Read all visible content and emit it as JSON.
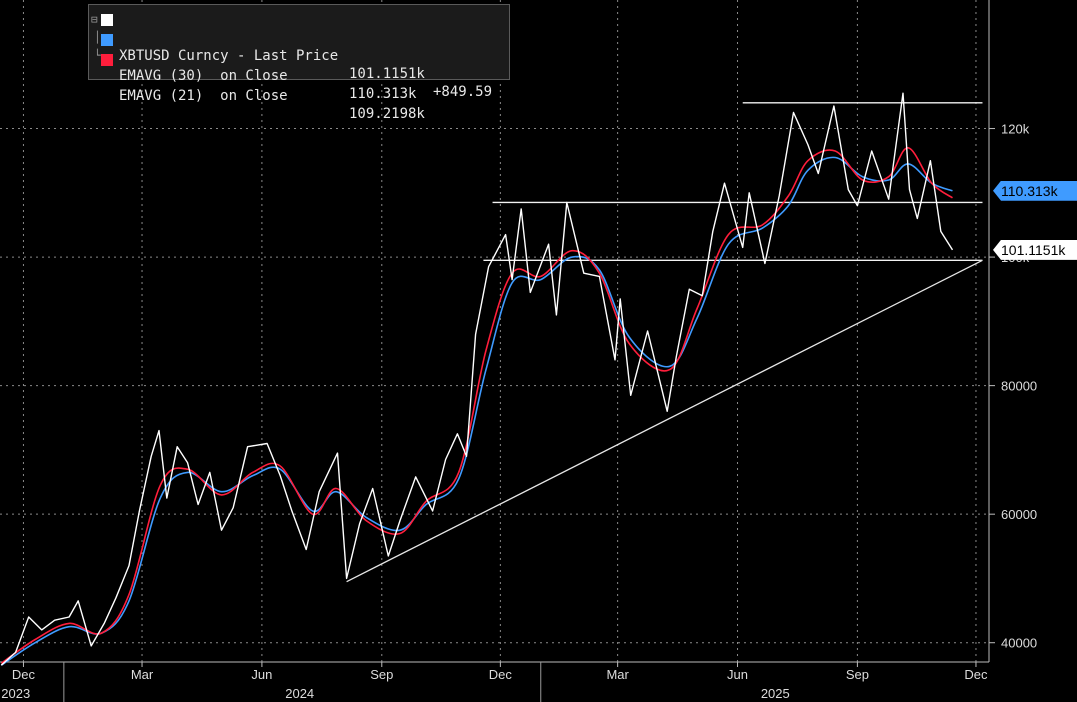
{
  "legend": {
    "items": [
      {
        "name": "XBTUSD Curncy - Last Price",
        "value": "101.1151k",
        "change": "+849.59",
        "color": "#ffffff"
      },
      {
        "name": "EMAVG (30)  on Close",
        "value": "110.313k",
        "change": "",
        "color": "#3f9bff"
      },
      {
        "name": "EMAVG (21)  on Close",
        "value": "109.2198k",
        "change": "",
        "color": "#ff1e3c"
      }
    ]
  },
  "price_tags": {
    "ema30": {
      "label": "110.313k",
      "value": 110313,
      "bg": "#3f9bff",
      "fg": "#000000"
    },
    "last": {
      "label": "101.1151k",
      "value": 101115,
      "bg": "#ffffff",
      "fg": "#000000"
    }
  },
  "chart_data": {
    "type": "line",
    "title": "",
    "xlabel": "",
    "ylabel": "",
    "ylim": [
      37000,
      140000
    ],
    "xlim": [
      "2023-11-13",
      "2025-12-11"
    ],
    "grid": true,
    "legend_position": "top-left",
    "y_ticks": [
      {
        "value": 40000,
        "label": "40000"
      },
      {
        "value": 60000,
        "label": "60000"
      },
      {
        "value": 80000,
        "label": "80000"
      },
      {
        "value": 100000,
        "label": "100k"
      },
      {
        "value": 120000,
        "label": "120k"
      }
    ],
    "x_ticks": [
      {
        "date": "2023-12-01",
        "label": "Dec"
      },
      {
        "date": "2024-03-01",
        "label": "Mar"
      },
      {
        "date": "2024-06-01",
        "label": "Jun"
      },
      {
        "date": "2024-09-01",
        "label": "Sep"
      },
      {
        "date": "2024-12-01",
        "label": "Dec"
      },
      {
        "date": "2025-03-01",
        "label": "Mar"
      },
      {
        "date": "2025-06-01",
        "label": "Jun"
      },
      {
        "date": "2025-09-01",
        "label": "Sep"
      },
      {
        "date": "2025-12-01",
        "label": "Dec"
      }
    ],
    "year_labels": [
      {
        "date": "2023-11-14",
        "label": "2023"
      },
      {
        "date": "2024-06-30",
        "label": "2024"
      },
      {
        "date": "2025-06-30",
        "label": "2025"
      }
    ],
    "year_dividers": [
      "2024-01-01",
      "2025-01-01"
    ],
    "series": [
      {
        "name": "XBTUSD Curncy - Last Price",
        "color": "#ffffff",
        "points": [
          [
            "2023-11-14",
            36500
          ],
          [
            "2023-11-25",
            38500
          ],
          [
            "2023-12-05",
            44000
          ],
          [
            "2023-12-15",
            42000
          ],
          [
            "2023-12-25",
            43500
          ],
          [
            "2024-01-05",
            44000
          ],
          [
            "2024-01-12",
            46500
          ],
          [
            "2024-01-22",
            39500
          ],
          [
            "2024-02-01",
            43000
          ],
          [
            "2024-02-10",
            47000
          ],
          [
            "2024-02-20",
            52000
          ],
          [
            "2024-02-28",
            60500
          ],
          [
            "2024-03-08",
            69000
          ],
          [
            "2024-03-14",
            73000
          ],
          [
            "2024-03-20",
            62500
          ],
          [
            "2024-03-28",
            70500
          ],
          [
            "2024-04-05",
            68000
          ],
          [
            "2024-04-13",
            61500
          ],
          [
            "2024-04-22",
            66500
          ],
          [
            "2024-05-01",
            57500
          ],
          [
            "2024-05-10",
            61000
          ],
          [
            "2024-05-21",
            70500
          ],
          [
            "2024-06-05",
            71000
          ],
          [
            "2024-06-15",
            66000
          ],
          [
            "2024-06-24",
            60500
          ],
          [
            "2024-07-05",
            54500
          ],
          [
            "2024-07-15",
            63500
          ],
          [
            "2024-07-29",
            69500
          ],
          [
            "2024-08-05",
            50000
          ],
          [
            "2024-08-15",
            58500
          ],
          [
            "2024-08-25",
            64000
          ],
          [
            "2024-09-06",
            53500
          ],
          [
            "2024-09-15",
            59000
          ],
          [
            "2024-09-27",
            65800
          ],
          [
            "2024-10-10",
            60500
          ],
          [
            "2024-10-20",
            68500
          ],
          [
            "2024-10-29",
            72500
          ],
          [
            "2024-11-05",
            69000
          ],
          [
            "2024-11-12",
            88000
          ],
          [
            "2024-11-22",
            98500
          ],
          [
            "2024-12-05",
            103500
          ],
          [
            "2024-12-10",
            96500
          ],
          [
            "2024-12-17",
            107500
          ],
          [
            "2024-12-24",
            94500
          ],
          [
            "2025-01-07",
            102000
          ],
          [
            "2025-01-13",
            91000
          ],
          [
            "2025-01-21",
            108500
          ],
          [
            "2025-02-03",
            97500
          ],
          [
            "2025-02-15",
            97000
          ],
          [
            "2025-02-27",
            84000
          ],
          [
            "2025-03-03",
            93500
          ],
          [
            "2025-03-11",
            78500
          ],
          [
            "2025-03-24",
            88500
          ],
          [
            "2025-04-08",
            76000
          ],
          [
            "2025-04-15",
            84500
          ],
          [
            "2025-04-25",
            95000
          ],
          [
            "2025-05-05",
            94000
          ],
          [
            "2025-05-13",
            104000
          ],
          [
            "2025-05-22",
            111500
          ],
          [
            "2025-06-05",
            101500
          ],
          [
            "2025-06-10",
            110000
          ],
          [
            "2025-06-22",
            99000
          ],
          [
            "2025-07-03",
            109500
          ],
          [
            "2025-07-14",
            122500
          ],
          [
            "2025-07-25",
            117500
          ],
          [
            "2025-08-02",
            113000
          ],
          [
            "2025-08-14",
            123500
          ],
          [
            "2025-08-25",
            110500
          ],
          [
            "2025-09-01",
            108000
          ],
          [
            "2025-09-12",
            116500
          ],
          [
            "2025-09-25",
            109000
          ],
          [
            "2025-10-06",
            125500
          ],
          [
            "2025-10-11",
            110500
          ],
          [
            "2025-10-17",
            106000
          ],
          [
            "2025-10-27",
            115000
          ],
          [
            "2025-11-04",
            104000
          ],
          [
            "2025-11-13",
            101115
          ]
        ]
      },
      {
        "name": "EMAVG (30) on Close",
        "color": "#3f9bff",
        "points": [
          [
            "2023-11-14",
            36500
          ],
          [
            "2023-12-10",
            40000
          ],
          [
            "2024-01-05",
            42500
          ],
          [
            "2024-01-30",
            41500
          ],
          [
            "2024-02-20",
            46500
          ],
          [
            "2024-03-15",
            62500
          ],
          [
            "2024-04-05",
            66500
          ],
          [
            "2024-05-01",
            63500
          ],
          [
            "2024-05-25",
            66000
          ],
          [
            "2024-06-15",
            67000
          ],
          [
            "2024-07-10",
            60500
          ],
          [
            "2024-07-28",
            63500
          ],
          [
            "2024-08-20",
            59500
          ],
          [
            "2024-09-15",
            57500
          ],
          [
            "2024-10-05",
            61500
          ],
          [
            "2024-10-30",
            65500
          ],
          [
            "2024-11-20",
            82500
          ],
          [
            "2024-12-10",
            96000
          ],
          [
            "2025-01-01",
            96500
          ],
          [
            "2025-01-25",
            100000
          ],
          [
            "2025-02-15",
            98000
          ],
          [
            "2025-03-10",
            87500
          ],
          [
            "2025-04-10",
            83000
          ],
          [
            "2025-05-01",
            90500
          ],
          [
            "2025-05-25",
            102000
          ],
          [
            "2025-06-20",
            104500
          ],
          [
            "2025-07-10",
            108000
          ],
          [
            "2025-07-25",
            113500
          ],
          [
            "2025-08-15",
            115500
          ],
          [
            "2025-09-05",
            112500
          ],
          [
            "2025-09-25",
            112000
          ],
          [
            "2025-10-10",
            114500
          ],
          [
            "2025-10-28",
            111500
          ],
          [
            "2025-11-13",
            110313
          ]
        ]
      },
      {
        "name": "EMAVG (21) on Close",
        "color": "#ff1e3c",
        "points": [
          [
            "2023-11-14",
            36800
          ],
          [
            "2023-12-10",
            40500
          ],
          [
            "2024-01-05",
            43000
          ],
          [
            "2024-01-30",
            41500
          ],
          [
            "2024-02-20",
            47500
          ],
          [
            "2024-03-15",
            64500
          ],
          [
            "2024-04-05",
            67000
          ],
          [
            "2024-05-01",
            63000
          ],
          [
            "2024-05-25",
            66500
          ],
          [
            "2024-06-15",
            67500
          ],
          [
            "2024-07-10",
            60000
          ],
          [
            "2024-07-28",
            64000
          ],
          [
            "2024-08-20",
            59000
          ],
          [
            "2024-09-15",
            57000
          ],
          [
            "2024-10-05",
            62000
          ],
          [
            "2024-10-30",
            66500
          ],
          [
            "2024-11-20",
            85500
          ],
          [
            "2024-12-10",
            97500
          ],
          [
            "2025-01-01",
            97000
          ],
          [
            "2025-01-25",
            101000
          ],
          [
            "2025-02-15",
            97500
          ],
          [
            "2025-03-10",
            86500
          ],
          [
            "2025-04-10",
            82500
          ],
          [
            "2025-05-01",
            92000
          ],
          [
            "2025-05-25",
            103500
          ],
          [
            "2025-06-20",
            105000
          ],
          [
            "2025-07-10",
            109500
          ],
          [
            "2025-07-25",
            115000
          ],
          [
            "2025-08-15",
            116500
          ],
          [
            "2025-09-05",
            112000
          ],
          [
            "2025-09-25",
            112500
          ],
          [
            "2025-10-10",
            117000
          ],
          [
            "2025-10-28",
            111500
          ],
          [
            "2025-11-13",
            109220
          ]
        ]
      }
    ],
    "annotations": [
      {
        "type": "hline",
        "from": "2025-06-05",
        "to": "2025-12-06",
        "value": 124000
      },
      {
        "type": "hline",
        "from": "2024-11-25",
        "to": "2025-12-06",
        "value": 108500
      },
      {
        "type": "hline",
        "from": "2024-11-18",
        "to": "2025-12-06",
        "value": 99500
      },
      {
        "type": "trendline",
        "from": [
          "2024-08-05",
          49500
        ],
        "to": [
          "2025-12-06",
          99500
        ]
      }
    ]
  }
}
